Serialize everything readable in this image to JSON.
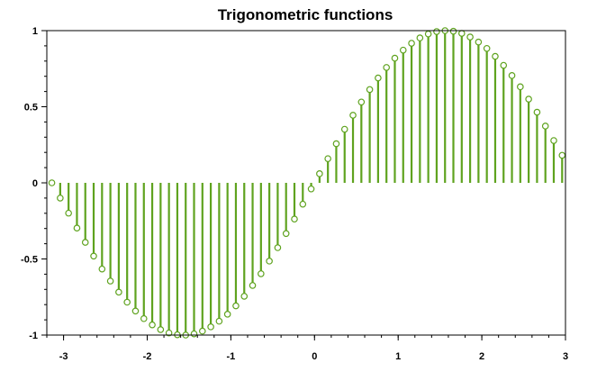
{
  "chart_data": {
    "type": "stem",
    "title": "Trigonometric functions",
    "xlabel": "",
    "ylabel": "",
    "xlim": [
      -3.2,
      3.0
    ],
    "ylim": [
      -1.0,
      1.0
    ],
    "x_ticks": [
      -3,
      -2,
      -1,
      0,
      1,
      2,
      3
    ],
    "x_tick_labels": [
      "-3",
      "-2",
      "-1",
      "0",
      "1",
      "2",
      "3"
    ],
    "y_ticks": [
      -1,
      -0.5,
      0,
      0.5,
      1
    ],
    "y_tick_labels": [
      "-1",
      "-0.5",
      "0",
      "0.5",
      "1"
    ],
    "grid": false,
    "legend": "none",
    "series": [
      {
        "function": "sin(x)",
        "color": "#5fa31f",
        "marker": "open-circle",
        "x": [
          -3.14,
          -3.04,
          -2.94,
          -2.84,
          -2.74,
          -2.64,
          -2.54,
          -2.44,
          -2.34,
          -2.24,
          -2.14,
          -2.04,
          -1.94,
          -1.84,
          -1.74,
          -1.64,
          -1.54,
          -1.44,
          -1.34,
          -1.24,
          -1.14,
          -1.04,
          -0.94,
          -0.84,
          -0.74,
          -0.64,
          -0.54,
          -0.44,
          -0.34,
          -0.24,
          -0.14,
          -0.04,
          0.06,
          0.16,
          0.26,
          0.36,
          0.46,
          0.56,
          0.66,
          0.76,
          0.86,
          0.96,
          1.06,
          1.16,
          1.26,
          1.36,
          1.46,
          1.56,
          1.66,
          1.76,
          1.86,
          1.96,
          2.06,
          2.16,
          2.26,
          2.36,
          2.46,
          2.56,
          2.66,
          2.76,
          2.86,
          2.96
        ],
        "y": [
          0.0,
          -0.1,
          -0.199,
          -0.297,
          -0.391,
          -0.481,
          -0.566,
          -0.645,
          -0.718,
          -0.784,
          -0.842,
          -0.892,
          -0.933,
          -0.964,
          -0.986,
          -0.998,
          -1.0,
          -0.992,
          -0.974,
          -0.946,
          -0.909,
          -0.863,
          -0.808,
          -0.745,
          -0.674,
          -0.597,
          -0.514,
          -0.426,
          -0.333,
          -0.238,
          -0.14,
          -0.04,
          0.06,
          0.159,
          0.257,
          0.352,
          0.444,
          0.531,
          0.613,
          0.689,
          0.758,
          0.819,
          0.872,
          0.917,
          0.952,
          0.978,
          0.994,
          1.0,
          0.996,
          0.982,
          0.958,
          0.925,
          0.883,
          0.831,
          0.772,
          0.705,
          0.631,
          0.55,
          0.464,
          0.373,
          0.278,
          0.181
        ]
      }
    ]
  }
}
